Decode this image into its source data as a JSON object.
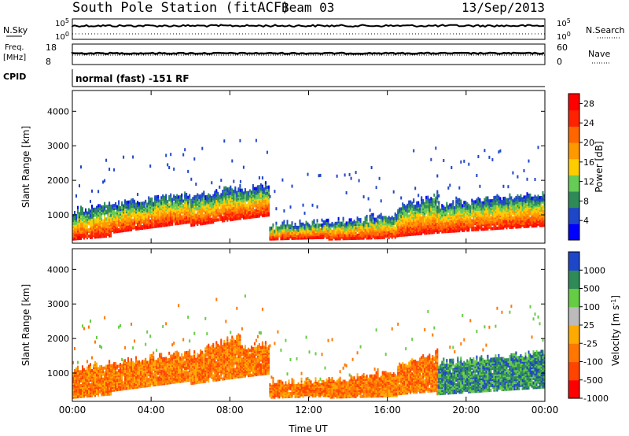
{
  "header": {
    "station": "South Pole Station (fitACF)",
    "beam": "Beam 03",
    "date": "13/Sep/2013"
  },
  "top_panels": {
    "nsky": {
      "label": "N.Sky",
      "tick_high": "10^5",
      "tick_low": "10^0",
      "right_label": "N.Search",
      "right_tick_high": "10^5",
      "right_tick_low": "10^0"
    },
    "freq": {
      "label_line1": "Freq.",
      "label_line2": "[MHz]",
      "tick_high": "18",
      "tick_low": "8",
      "right_label": "Nave",
      "right_tick_high": "60",
      "right_tick_low": "0"
    },
    "cpid": {
      "label": "CPID",
      "text": "normal (fast) -151 RF"
    }
  },
  "colors": {
    "power": [
      "#0000ff",
      "#1e46c8",
      "#2e8b57",
      "#66cc55",
      "#ffcc00",
      "#ff9900",
      "#ff6600",
      "#ff2200",
      "#ff0000"
    ],
    "velocity": [
      "#ff0000",
      "#ff4400",
      "#ff7700",
      "#ffaa00",
      "#bbbbbb",
      "#66cc44",
      "#2e8b57",
      "#1e46c8"
    ]
  },
  "chart_data": [
    {
      "type": "heatmap",
      "quantity": "Power",
      "xlabel": "",
      "ylabel": "Slant Range [km]",
      "x_ticks": [
        "00:00",
        "04:00",
        "08:00",
        "12:00",
        "16:00",
        "20:00",
        "00:00"
      ],
      "x_range_hours": [
        0,
        24
      ],
      "y_ticks": [
        "1000",
        "2000",
        "3000",
        "4000"
      ],
      "y_range_km": [
        180,
        4600
      ],
      "colorbar": {
        "label": "Power [dB]",
        "ticks": [
          "4",
          "8",
          "12",
          "16",
          "20",
          "24",
          "28"
        ],
        "range": [
          0,
          30
        ]
      },
      "bands": [
        {
          "t0": 0.0,
          "t1": 2.0,
          "r_lo": [
            300,
            400
          ],
          "r_hi": [
            1100,
            1300
          ]
        },
        {
          "t0": 2.0,
          "t1": 6.0,
          "r_lo": [
            500,
            800
          ],
          "r_hi": [
            1300,
            1600
          ]
        },
        {
          "t0": 6.0,
          "t1": 8.5,
          "r_lo": [
            700,
            900
          ],
          "r_hi": [
            1500,
            1800
          ]
        },
        {
          "t0": 8.5,
          "t1": 10.0,
          "r_lo": [
            900,
            1000
          ],
          "r_hi": [
            1700,
            1900
          ]
        },
        {
          "t0": 10.0,
          "t1": 13.0,
          "r_lo": [
            300,
            350
          ],
          "r_hi": [
            700,
            800
          ]
        },
        {
          "t0": 13.0,
          "t1": 16.5,
          "r_lo": [
            300,
            350
          ],
          "r_hi": [
            800,
            1000
          ]
        },
        {
          "t0": 16.5,
          "t1": 18.5,
          "r_lo": [
            400,
            500
          ],
          "r_hi": [
            1200,
            1600
          ]
        },
        {
          "t0": 18.5,
          "t1": 24.0,
          "r_lo": [
            500,
            700
          ],
          "r_hi": [
            1300,
            1600
          ]
        }
      ]
    },
    {
      "type": "heatmap",
      "quantity": "Velocity",
      "xlabel": "Time UT",
      "ylabel": "Slant Range [km]",
      "x_ticks": [
        "00:00",
        "04:00",
        "08:00",
        "12:00",
        "16:00",
        "20:00",
        "00:00"
      ],
      "x_range_hours": [
        0,
        24
      ],
      "y_ticks": [
        "1000",
        "2000",
        "3000",
        "4000"
      ],
      "y_range_km": [
        180,
        4600
      ],
      "colorbar": {
        "label": "Velocity [m s^-1]",
        "ticks": [
          "1000",
          "500",
          "100",
          "25",
          "-25",
          "-100",
          "-500",
          "-1000"
        ]
      },
      "bands": [
        {
          "t0": 0.0,
          "t1": 2.0,
          "r_lo": [
            300,
            400
          ],
          "r_hi": [
            1100,
            1300
          ]
        },
        {
          "t0": 2.0,
          "t1": 6.0,
          "r_lo": [
            500,
            800
          ],
          "r_hi": [
            1300,
            1600
          ]
        },
        {
          "t0": 6.0,
          "t1": 8.5,
          "r_lo": [
            700,
            900
          ],
          "r_hi": [
            1500,
            2100
          ]
        },
        {
          "t0": 8.5,
          "t1": 10.0,
          "r_lo": [
            900,
            1000
          ],
          "r_hi": [
            1700,
            1900
          ]
        },
        {
          "t0": 10.0,
          "t1": 13.0,
          "r_lo": [
            300,
            350
          ],
          "r_hi": [
            700,
            800
          ]
        },
        {
          "t0": 13.0,
          "t1": 16.5,
          "r_lo": [
            300,
            350
          ],
          "r_hi": [
            800,
            1000
          ]
        },
        {
          "t0": 16.5,
          "t1": 18.5,
          "r_lo": [
            400,
            500
          ],
          "r_hi": [
            1200,
            1600
          ]
        },
        {
          "t0": 18.5,
          "t1": 24.0,
          "r_lo": [
            400,
            600
          ],
          "r_hi": [
            1300,
            1600
          ]
        }
      ]
    }
  ]
}
